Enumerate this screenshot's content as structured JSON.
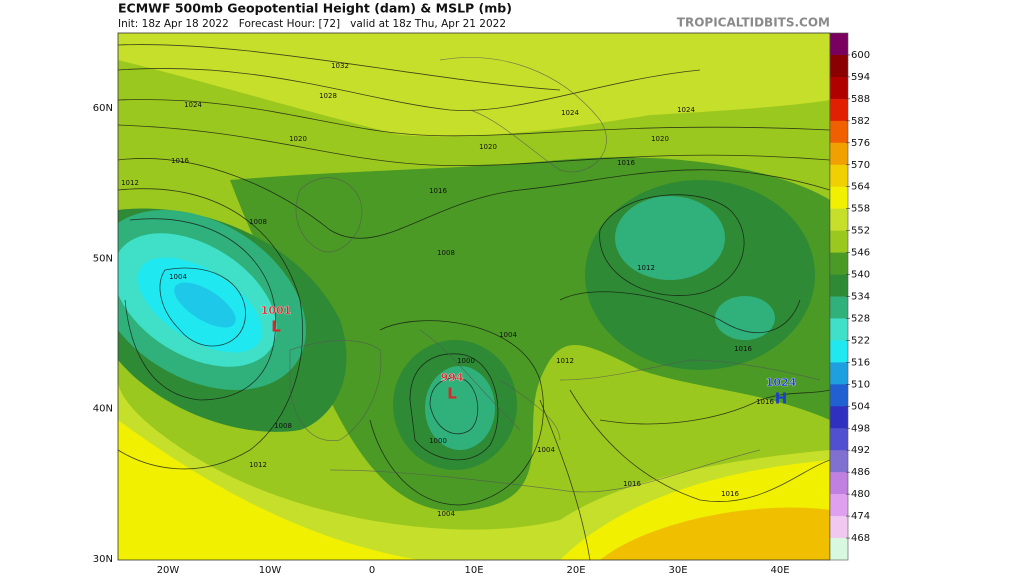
{
  "header": {
    "title": "ECMWF 500mb Geopotential Height (dam) & MSLP (mb)",
    "subtitle": "Init: 18z Apr 18 2022   Forecast Hour: [72]   valid at 18z Thu, Apr 21 2022",
    "site": "TROPICALTIDBITS.COM"
  },
  "map": {
    "lat_labels": [
      "60N",
      "50N",
      "40N",
      "30N"
    ],
    "lon_labels": [
      "20W",
      "10W",
      "0",
      "10E",
      "20E",
      "30E",
      "40E"
    ],
    "centers": [
      {
        "value": "1001",
        "letter": "L",
        "color": "#d62a2a"
      },
      {
        "value": "994",
        "letter": "L",
        "color": "#d62a2a"
      },
      {
        "value": "1024",
        "letter": "H",
        "color": "#1e3fc8"
      }
    ],
    "isobar_labels": [
      "1032",
      "1028",
      "1024",
      "1024",
      "1024",
      "1020",
      "1020",
      "1020",
      "1016",
      "1016",
      "1016",
      "1012",
      "1008",
      "1004",
      "1008",
      "1004",
      "1012",
      "1016",
      "1012",
      "1000",
      "1000",
      "1004",
      "1008",
      "1012",
      "1016",
      "1016",
      "1004",
      "1016"
    ]
  },
  "colorbar": {
    "labels": [
      "600",
      "594",
      "588",
      "582",
      "576",
      "570",
      "564",
      "558",
      "552",
      "546",
      "540",
      "534",
      "528",
      "522",
      "516",
      "510",
      "504",
      "498",
      "492",
      "486",
      "480",
      "474",
      "468"
    ],
    "colors": [
      "#7a0060",
      "#8b0000",
      "#b00000",
      "#e02000",
      "#f06000",
      "#f0a000",
      "#f0d000",
      "#f0f000",
      "#c6df2a",
      "#9bc81e",
      "#4a9a25",
      "#2f8a35",
      "#30b07a",
      "#40e0c8",
      "#20e8f0",
      "#1ea0e0",
      "#2060d0",
      "#3030c0",
      "#5050d0",
      "#8070d0",
      "#c080e0",
      "#e0a0f0",
      "#f0c8f0",
      "#d8f8e0"
    ]
  }
}
